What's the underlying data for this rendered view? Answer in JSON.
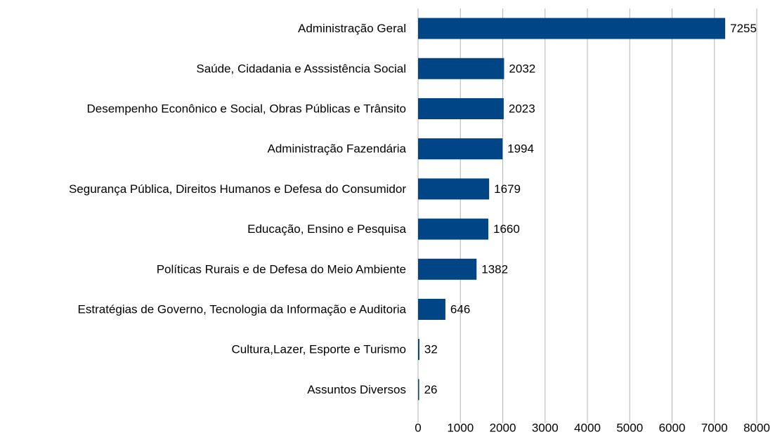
{
  "chart_data": {
    "type": "bar",
    "orientation": "horizontal",
    "categories": [
      "Administração Geral",
      "Saúde, Cidadania e Asssistência Social",
      "Desempenho Econônico e Social, Obras Públicas e Trânsito",
      "Administração Fazendária",
      "Segurança Pública, Direitos Humanos e Defesa do Consumidor",
      "Educação, Ensino e Pesquisa",
      "Políticas Rurais e de Defesa do Meio Ambiente",
      "Estratégias de Governo, Tecnologia da Informação e Auditoria",
      "Cultura,Lazer, Esporte e Turismo",
      "Assuntos Diversos"
    ],
    "values": [
      7255,
      2032,
      2023,
      1994,
      1679,
      1660,
      1382,
      646,
      32,
      26
    ],
    "color": "#004586",
    "xlim": [
      0,
      8000
    ],
    "xticks": [
      0,
      1000,
      2000,
      3000,
      4000,
      5000,
      6000,
      7000,
      8000
    ],
    "grid": true
  }
}
